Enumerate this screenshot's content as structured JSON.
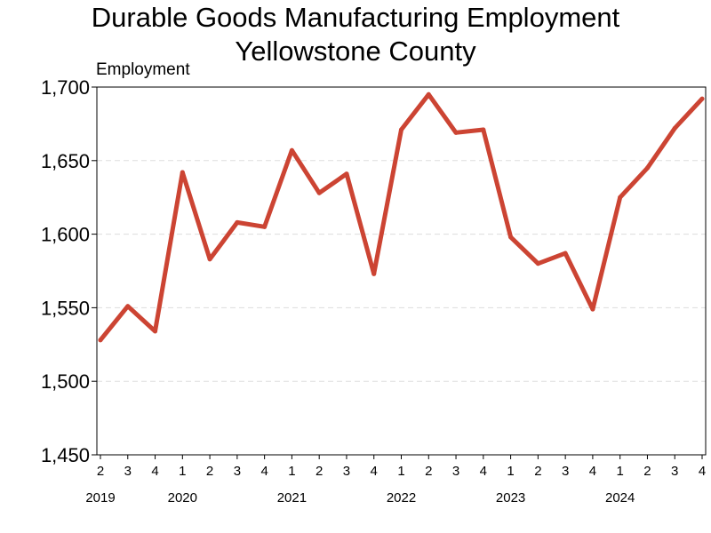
{
  "chart_data": {
    "type": "line",
    "title": "Durable Goods Manufacturing Employment",
    "subtitle": "Yellowstone County",
    "ylabel": "Employment",
    "xlabel": "",
    "ylim": [
      1450,
      1700
    ],
    "yticks": [
      "1,450",
      "1,500",
      "1,550",
      "1,600",
      "1,650",
      "1,700"
    ],
    "grid": "horizontal dashed",
    "legend": "none",
    "quarters": [
      "2",
      "3",
      "4",
      "1",
      "2",
      "3",
      "4",
      "1",
      "2",
      "3",
      "4",
      "1",
      "2",
      "3",
      "4",
      "1",
      "2",
      "3",
      "4",
      "1",
      "2",
      "3",
      "4"
    ],
    "years": [
      {
        "label": "2019",
        "index": 0
      },
      {
        "label": "2020",
        "index": 3
      },
      {
        "label": "2021",
        "index": 7
      },
      {
        "label": "2022",
        "index": 11
      },
      {
        "label": "2023",
        "index": 15
      },
      {
        "label": "2024",
        "index": 19
      }
    ],
    "series": [
      {
        "values": [
          1528,
          1551,
          1534,
          1642,
          1583,
          1608,
          1605,
          1657,
          1628,
          1641,
          1573,
          1671,
          1695,
          1669,
          1671,
          1598,
          1580,
          1587,
          1549,
          1625,
          1645,
          1672,
          1692
        ],
        "color": "#cc4433"
      }
    ]
  }
}
